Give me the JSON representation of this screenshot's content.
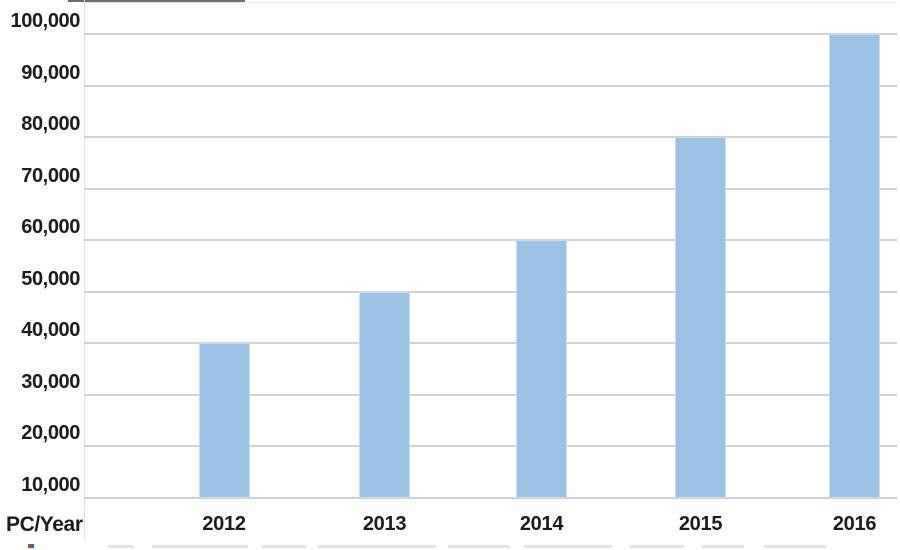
{
  "chart_data": {
    "type": "bar",
    "title": "",
    "corner_label": "PC/Year",
    "categories": [
      "2012",
      "2013",
      "2014",
      "2015",
      "2016"
    ],
    "values": [
      40000,
      50000,
      60000,
      80000,
      100000
    ],
    "y_ticks": [
      {
        "value": 100000,
        "label": "100,000"
      },
      {
        "value": 90000,
        "label": "90,000"
      },
      {
        "value": 80000,
        "label": "80,000"
      },
      {
        "value": 70000,
        "label": "70,000"
      },
      {
        "value": 60000,
        "label": "60,000"
      },
      {
        "value": 50000,
        "label": "50,000"
      },
      {
        "value": 40000,
        "label": "40,000"
      },
      {
        "value": 30000,
        "label": "30,000"
      },
      {
        "value": 20000,
        "label": "20,000"
      },
      {
        "value": 10000,
        "label": "10,000"
      }
    ],
    "ylim": [
      10000,
      100000
    ],
    "xlabel": "",
    "ylabel": "",
    "grid": true,
    "legend": false,
    "colors": {
      "bar_fill": "#9CC2E5",
      "bar_border": "#C9DCF0",
      "gridline": "#C6C6C6",
      "text": "#1C1C1C",
      "background": "#FFFFFF"
    }
  }
}
